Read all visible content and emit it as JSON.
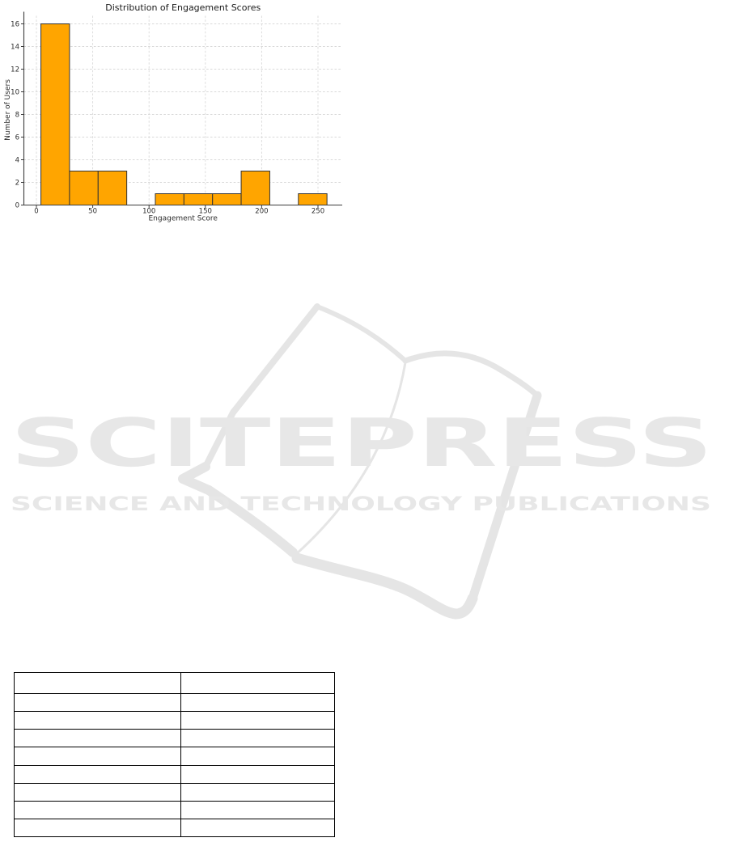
{
  "page": {
    "background": "#ffffff"
  },
  "chart_data": {
    "type": "bar",
    "subtype": "histogram",
    "title": "Distribution of Engagement Scores",
    "xlabel": "Engagement Score",
    "ylabel": "Number of Users",
    "bin_edges": [
      4.0,
      29.4,
      54.8,
      80.2,
      105.6,
      131.0,
      156.4,
      181.8,
      207.2,
      232.6,
      258.0
    ],
    "counts": [
      16,
      3,
      3,
      0,
      1,
      1,
      1,
      3,
      0,
      1
    ],
    "xticks": [
      0,
      50,
      100,
      150,
      200,
      250
    ],
    "yticks": [
      0,
      2,
      4,
      6,
      8,
      10,
      12,
      14,
      16
    ],
    "xlim": [
      -11,
      271
    ],
    "ylim": [
      0,
      16.7
    ],
    "grid": true,
    "grid_style": "dashed",
    "legend": null,
    "bar_color": "#FFA500",
    "bar_edge_color": "#333333",
    "axis_color": "#3c3c3c",
    "tick_label_color": "#2b2b2b",
    "title_color": "#1a1a1a",
    "grid_color": "#d9d9d9"
  },
  "watermark": {
    "title": "SCITEPRESS",
    "subtitle": "SCIENCE AND TECHNOLOGY PUBLICATIONS",
    "color": "#e7e7e7",
    "book_stroke_color": "#e5e5e5",
    "icon": "open-book-icon"
  },
  "table": {
    "num_rows": 9,
    "num_cols": 2,
    "border_color": "#000000",
    "rows": [
      [
        "",
        ""
      ],
      [
        "",
        ""
      ],
      [
        "",
        ""
      ],
      [
        "",
        ""
      ],
      [
        "",
        ""
      ],
      [
        "",
        ""
      ],
      [
        "",
        ""
      ],
      [
        "",
        ""
      ],
      [
        "",
        ""
      ]
    ]
  }
}
